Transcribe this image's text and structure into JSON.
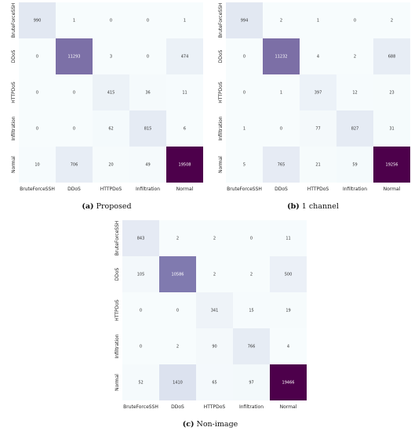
{
  "colors": {
    "low": "#f7fcfd",
    "mid": "#8c96c6",
    "high": "#4d004b"
  },
  "chart_data": [
    {
      "type": "heatmap",
      "caption_tag": "(a)",
      "caption_text": "Proposed",
      "x_labels": [
        "BruteForceSSH",
        "DDoS",
        "HTTPDoS",
        "Infiltration",
        "Normal"
      ],
      "y_labels": [
        "BruteForceSSH",
        "DDoS",
        "HTTPDoS",
        "Infiltration",
        "Normal"
      ],
      "matrix": [
        [
          990,
          1,
          0,
          0,
          1
        ],
        [
          0,
          11293,
          3,
          0,
          474
        ],
        [
          0,
          0,
          415,
          36,
          11
        ],
        [
          0,
          0,
          62,
          815,
          6
        ],
        [
          10,
          706,
          20,
          49,
          19508
        ]
      ]
    },
    {
      "type": "heatmap",
      "caption_tag": "(b)",
      "caption_text": "1 channel",
      "x_labels": [
        "BruteForceSSH",
        "DDoS",
        "HTTPDoS",
        "Infiltration",
        "Normal"
      ],
      "y_labels": [
        "BruteForceSSH",
        "DDoS",
        "HTTPDoS",
        "Infiltration",
        "Normal"
      ],
      "matrix": [
        [
          994,
          2,
          1,
          0,
          2
        ],
        [
          0,
          11232,
          4,
          2,
          688
        ],
        [
          0,
          1,
          397,
          12,
          23
        ],
        [
          1,
          0,
          77,
          827,
          31
        ],
        [
          5,
          765,
          21,
          59,
          19256
        ]
      ]
    },
    {
      "type": "heatmap",
      "caption_tag": "(c)",
      "caption_text": "Non-image",
      "x_labels": [
        "BruteForceSSH",
        "DDoS",
        "HTTPDoS",
        "Infiltration",
        "Normal"
      ],
      "y_labels": [
        "BruteForceSSH",
        "DDoS",
        "HTTPDoS",
        "Infiltration",
        "Normal"
      ],
      "matrix": [
        [
          843,
          2,
          2,
          0,
          11
        ],
        [
          105,
          10586,
          2,
          2,
          500
        ],
        [
          0,
          0,
          341,
          15,
          19
        ],
        [
          0,
          2,
          90,
          766,
          4
        ],
        [
          52,
          1410,
          65,
          97,
          19466
        ]
      ]
    }
  ]
}
